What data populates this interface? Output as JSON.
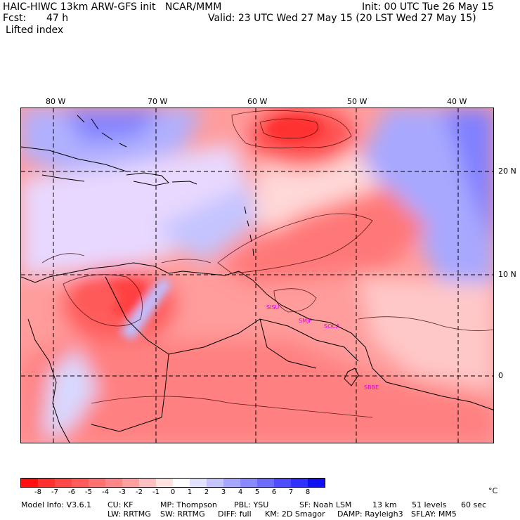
{
  "header": {
    "left1": "HAIC-HIWC 13km ARW-GFS init   NCAR/MMM",
    "right1": "Init: 00 UTC Tue 26 May 15",
    "fcst_label": "Fcst:",
    "fcst_value": "47 h",
    "right2": "Valid: 23 UTC Wed 27 May 15 (20 LST Wed 27 May 15)",
    "field": "Lifted index"
  },
  "map": {
    "lon_labels": [
      "80 W",
      "70 W",
      "60 W",
      "50 W",
      "40 W"
    ],
    "lat_labels": [
      "20 N",
      "10 N",
      "0"
    ],
    "stations": [
      "SISU",
      "SMJP",
      "SOCA",
      "SBBE"
    ]
  },
  "colorbar": {
    "labels": [
      "-8",
      "-7",
      "-6",
      "-5",
      "-4",
      "-3",
      "-2",
      "-1",
      "0",
      "1",
      "2",
      "3",
      "4",
      "5",
      "6",
      "7",
      "8"
    ],
    "unit": "°C",
    "colors": [
      "#ff1010",
      "#ff3030",
      "#ff4848",
      "#ff5c5c",
      "#ff7070",
      "#ff8686",
      "#ffa0a0",
      "#ffc0c0",
      "#ffe2e2",
      "#ffffff",
      "#e2e2ff",
      "#c4c4ff",
      "#a6a6ff",
      "#8a8aff",
      "#6c6cff",
      "#4e4eff",
      "#3030ff",
      "#1010f0"
    ]
  },
  "footer": {
    "line1": [
      "Model Info: V3.6.1",
      "CU: KF",
      "MP: Thompson",
      "PBL: YSU",
      "SF: Noah LSM",
      "13 km",
      "51 levels",
      "60 sec"
    ],
    "line2": [
      "LW: RRTMG",
      "SW: RRTMG",
      "DIFF: full",
      "KM: 2D Smagor",
      "DAMP: Rayleigh3",
      "SFLAY: MM5"
    ]
  }
}
